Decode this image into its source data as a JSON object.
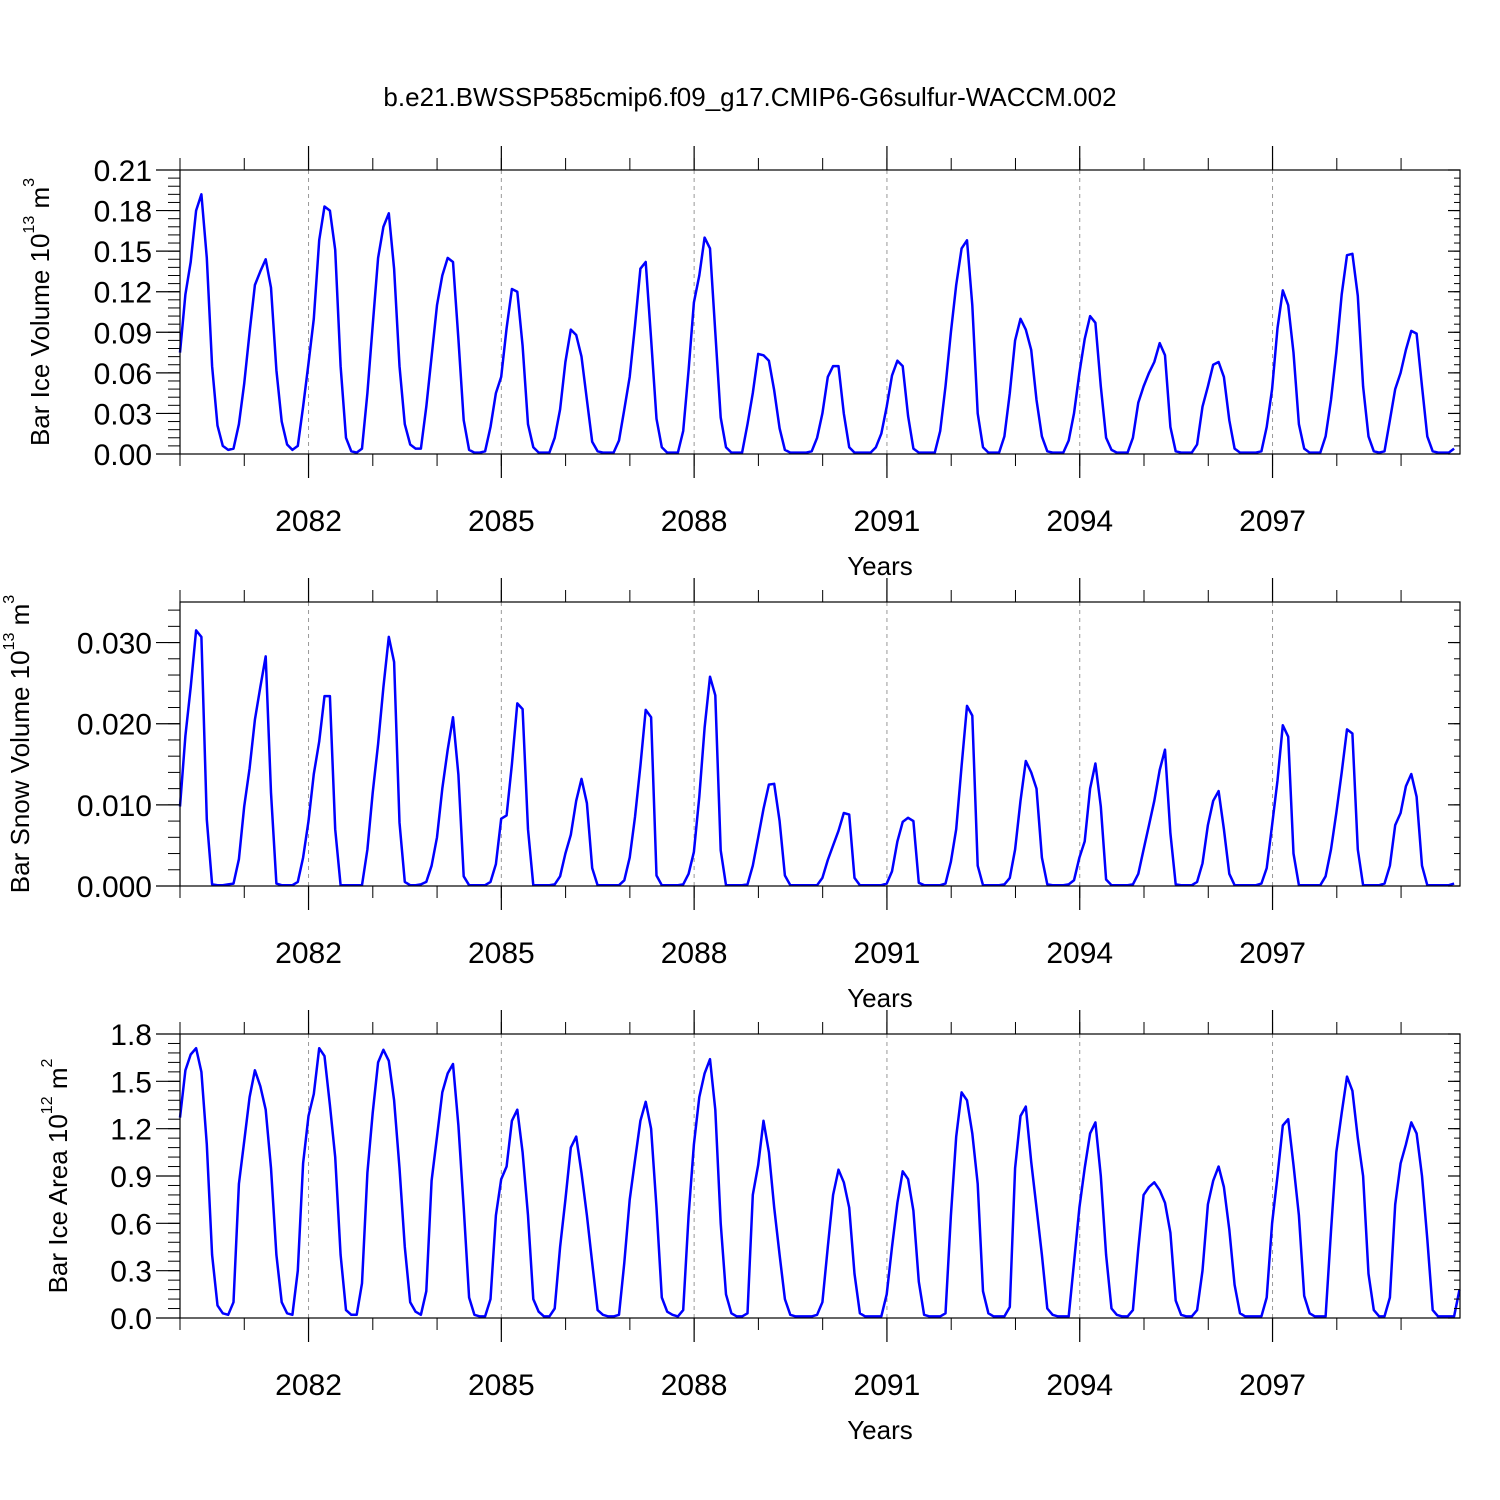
{
  "title": "b.e21.BWSSP585cmip6.f09_g17.CMIP6-G6sulfur-WACCM.002",
  "colors": {
    "line": "#0000ff",
    "axis": "#000000",
    "gridline": "#999999"
  },
  "chart_data": [
    {
      "type": "line",
      "ylabel": {
        "text": "Bar Ice Volume 10",
        "exp": "13",
        "unit": " m",
        "unit_exp": "3"
      },
      "xlabel": "Years",
      "xlim": [
        2080.0,
        2099.917
      ],
      "ylim": [
        0.0,
        0.21
      ],
      "yticks": [
        0.0,
        0.03,
        0.06,
        0.09,
        0.12,
        0.15,
        0.18,
        0.21
      ],
      "yticklabels": [
        "0.00",
        "0.03",
        "0.06",
        "0.09",
        "0.12",
        "0.15",
        "0.18",
        "0.21"
      ],
      "xticks": [
        2082,
        2085,
        2088,
        2091,
        2094,
        2097
      ],
      "xticklabels": [
        "2082",
        "2085",
        "2088",
        "2091",
        "2094",
        "2097"
      ],
      "grid": "vertical-dashed",
      "start": 2080.0,
      "step": 0.0833,
      "series": [
        {
          "values": [
            0.075,
            0.118,
            0.142,
            0.18,
            0.192,
            0.145,
            0.065,
            0.021,
            0.006,
            0.003,
            0.004,
            0.022,
            0.052,
            0.09,
            0.125,
            0.135,
            0.144,
            0.123,
            0.062,
            0.024,
            0.007,
            0.003,
            0.006,
            0.035,
            0.067,
            0.1,
            0.158,
            0.183,
            0.18,
            0.151,
            0.065,
            0.012,
            0.002,
            0.001,
            0.004,
            0.045,
            0.095,
            0.145,
            0.168,
            0.178,
            0.137,
            0.065,
            0.022,
            0.007,
            0.004,
            0.004,
            0.035,
            0.072,
            0.11,
            0.132,
            0.145,
            0.142,
            0.085,
            0.025,
            0.003,
            0.001,
            0.001,
            0.002,
            0.02,
            0.045,
            0.057,
            0.093,
            0.122,
            0.12,
            0.08,
            0.022,
            0.005,
            0.001,
            0.001,
            0.001,
            0.012,
            0.033,
            0.068,
            0.092,
            0.088,
            0.072,
            0.04,
            0.009,
            0.002,
            0.001,
            0.001,
            0.001,
            0.01,
            0.033,
            0.057,
            0.095,
            0.137,
            0.142,
            0.085,
            0.026,
            0.005,
            0.001,
            0.001,
            0.001,
            0.017,
            0.062,
            0.112,
            0.132,
            0.16,
            0.152,
            0.09,
            0.027,
            0.005,
            0.001,
            0.001,
            0.001,
            0.022,
            0.045,
            0.074,
            0.073,
            0.069,
            0.047,
            0.019,
            0.003,
            0.001,
            0.001,
            0.001,
            0.001,
            0.002,
            0.012,
            0.03,
            0.057,
            0.065,
            0.065,
            0.03,
            0.005,
            0.001,
            0.001,
            0.001,
            0.001,
            0.005,
            0.015,
            0.035,
            0.058,
            0.069,
            0.065,
            0.028,
            0.004,
            0.001,
            0.001,
            0.001,
            0.001,
            0.017,
            0.05,
            0.09,
            0.125,
            0.152,
            0.158,
            0.11,
            0.03,
            0.005,
            0.001,
            0.001,
            0.001,
            0.013,
            0.045,
            0.084,
            0.1,
            0.092,
            0.077,
            0.04,
            0.013,
            0.002,
            0.001,
            0.001,
            0.001,
            0.01,
            0.03,
            0.06,
            0.085,
            0.102,
            0.097,
            0.05,
            0.012,
            0.003,
            0.001,
            0.001,
            0.001,
            0.012,
            0.038,
            0.05,
            0.06,
            0.068,
            0.082,
            0.073,
            0.02,
            0.002,
            0.001,
            0.001,
            0.001,
            0.007,
            0.035,
            0.05,
            0.066,
            0.068,
            0.057,
            0.025,
            0.004,
            0.001,
            0.001,
            0.001,
            0.001,
            0.002,
            0.02,
            0.048,
            0.093,
            0.121,
            0.11,
            0.075,
            0.022,
            0.004,
            0.001,
            0.001,
            0.001,
            0.013,
            0.04,
            0.075,
            0.118,
            0.147,
            0.148,
            0.117,
            0.05,
            0.013,
            0.002,
            0.001,
            0.002,
            0.025,
            0.048,
            0.06,
            0.077,
            0.091,
            0.089,
            0.05,
            0.013,
            0.002,
            0.001,
            0.001,
            0.001,
            0.004
          ]
        }
      ]
    },
    {
      "type": "line",
      "ylabel": {
        "text": "Bar Snow Volume 10",
        "exp": "13",
        "unit": " m",
        "unit_exp": "3"
      },
      "xlabel": "Years",
      "xlim": [
        2080.0,
        2099.917
      ],
      "ylim": [
        0.0,
        0.035
      ],
      "yticks": [
        0.0,
        0.01,
        0.02,
        0.03
      ],
      "yticklabels": [
        "0.000",
        "0.010",
        "0.020",
        "0.030"
      ],
      "xticks": [
        2082,
        2085,
        2088,
        2091,
        2094,
        2097
      ],
      "xticklabels": [
        "2082",
        "2085",
        "2088",
        "2091",
        "2094",
        "2097"
      ],
      "grid": "vertical-dashed",
      "start": 2080.0,
      "step": 0.0833,
      "series": [
        {
          "values": [
            0.0098,
            0.0185,
            0.0245,
            0.0315,
            0.0307,
            0.0082,
            0.0002,
            0.0001,
            0.0001,
            0.0002,
            0.0003,
            0.0033,
            0.0098,
            0.0145,
            0.0205,
            0.0245,
            0.0283,
            0.0115,
            0.0003,
            0.0001,
            0.0001,
            0.0001,
            0.0005,
            0.0035,
            0.008,
            0.0138,
            0.0178,
            0.0234,
            0.0234,
            0.007,
            0.0001,
            0.0001,
            0.0001,
            0.0001,
            0.0001,
            0.0045,
            0.0115,
            0.0175,
            0.0245,
            0.0307,
            0.0276,
            0.0078,
            0.0005,
            0.0001,
            0.0001,
            0.0002,
            0.0005,
            0.0025,
            0.006,
            0.012,
            0.0168,
            0.0208,
            0.0137,
            0.0012,
            0.0001,
            0.0001,
            0.0001,
            0.0001,
            0.0005,
            0.0027,
            0.0083,
            0.0087,
            0.015,
            0.0225,
            0.0218,
            0.007,
            0.0001,
            0.0001,
            0.0001,
            0.0001,
            0.0002,
            0.0012,
            0.004,
            0.0063,
            0.0105,
            0.0132,
            0.0102,
            0.0022,
            0.0001,
            0.0001,
            0.0001,
            0.0001,
            0.0001,
            0.0007,
            0.0035,
            0.0085,
            0.0148,
            0.0217,
            0.0208,
            0.0013,
            0.0001,
            0.0001,
            0.0001,
            0.0001,
            0.0002,
            0.0015,
            0.0042,
            0.011,
            0.0195,
            0.0258,
            0.0235,
            0.0044,
            0.0001,
            0.0001,
            0.0001,
            0.0001,
            0.0002,
            0.0025,
            0.006,
            0.0095,
            0.0125,
            0.0126,
            0.008,
            0.0013,
            0.0001,
            0.0001,
            0.0001,
            0.0001,
            0.0001,
            0.0001,
            0.001,
            0.0032,
            0.005,
            0.0068,
            0.009,
            0.0088,
            0.001,
            0.0001,
            0.0001,
            0.0001,
            0.0001,
            0.0001,
            0.0003,
            0.0018,
            0.0055,
            0.0079,
            0.0084,
            0.008,
            0.0004,
            0.0001,
            0.0001,
            0.0001,
            0.0001,
            0.0003,
            0.003,
            0.007,
            0.0148,
            0.0222,
            0.021,
            0.0025,
            0.0001,
            0.0001,
            0.0001,
            0.0001,
            0.0002,
            0.001,
            0.0045,
            0.0105,
            0.0154,
            0.014,
            0.012,
            0.0035,
            0.0002,
            0.0001,
            0.0001,
            0.0001,
            0.0002,
            0.0007,
            0.0035,
            0.0055,
            0.012,
            0.0151,
            0.0098,
            0.0008,
            0.0001,
            0.0001,
            0.0001,
            0.0001,
            0.0002,
            0.0015,
            0.0045,
            0.0075,
            0.0105,
            0.0143,
            0.0168,
            0.0065,
            0.0002,
            0.0001,
            0.0001,
            0.0001,
            0.0005,
            0.0028,
            0.0075,
            0.0105,
            0.0117,
            0.007,
            0.0015,
            0.0001,
            0.0001,
            0.0001,
            0.0001,
            0.0001,
            0.0003,
            0.0022,
            0.0075,
            0.013,
            0.0198,
            0.0184,
            0.004,
            0.0001,
            0.0001,
            0.0001,
            0.0001,
            0.0001,
            0.0012,
            0.0045,
            0.009,
            0.014,
            0.0193,
            0.0188,
            0.0045,
            0.0001,
            0.0001,
            0.0001,
            0.0001,
            0.0003,
            0.0025,
            0.0075,
            0.009,
            0.0123,
            0.0138,
            0.011,
            0.0025,
            0.0001,
            0.0001,
            0.0001,
            0.0001,
            0.0001,
            0.0003
          ]
        }
      ]
    },
    {
      "type": "line",
      "ylabel": {
        "text": "Bar Ice Area 10",
        "exp": "12",
        "unit": " m",
        "unit_exp": "2"
      },
      "xlabel": "Years",
      "xlim": [
        2080.0,
        2099.917
      ],
      "ylim": [
        0.0,
        1.8
      ],
      "yticks": [
        0.0,
        0.3,
        0.6,
        0.9,
        1.2,
        1.5,
        1.8
      ],
      "yticklabels": [
        "0.0",
        "0.3",
        "0.6",
        "0.9",
        "1.2",
        "1.5",
        "1.8"
      ],
      "xticks": [
        2082,
        2085,
        2088,
        2091,
        2094,
        2097
      ],
      "xticklabels": [
        "2082",
        "2085",
        "2088",
        "2091",
        "2094",
        "2097"
      ],
      "grid": "vertical-dashed",
      "start": 2080.0,
      "step": 0.0833,
      "series": [
        {
          "values": [
            1.27,
            1.57,
            1.67,
            1.71,
            1.56,
            1.1,
            0.4,
            0.08,
            0.03,
            0.02,
            0.1,
            0.85,
            1.12,
            1.4,
            1.57,
            1.47,
            1.32,
            0.95,
            0.4,
            0.1,
            0.03,
            0.02,
            0.3,
            0.98,
            1.28,
            1.42,
            1.71,
            1.66,
            1.35,
            1.02,
            0.4,
            0.05,
            0.02,
            0.02,
            0.22,
            0.92,
            1.3,
            1.62,
            1.7,
            1.63,
            1.38,
            0.95,
            0.45,
            0.1,
            0.04,
            0.02,
            0.17,
            0.87,
            1.15,
            1.43,
            1.55,
            1.61,
            1.22,
            0.7,
            0.13,
            0.02,
            0.01,
            0.01,
            0.12,
            0.65,
            0.88,
            0.96,
            1.25,
            1.32,
            1.05,
            0.65,
            0.12,
            0.04,
            0.01,
            0.01,
            0.06,
            0.45,
            0.75,
            1.08,
            1.15,
            0.92,
            0.65,
            0.35,
            0.05,
            0.02,
            0.01,
            0.01,
            0.02,
            0.35,
            0.75,
            1.0,
            1.25,
            1.37,
            1.2,
            0.7,
            0.13,
            0.04,
            0.02,
            0.01,
            0.05,
            0.65,
            1.1,
            1.4,
            1.55,
            1.64,
            1.32,
            0.6,
            0.15,
            0.03,
            0.01,
            0.01,
            0.03,
            0.78,
            0.97,
            1.25,
            1.05,
            0.7,
            0.4,
            0.12,
            0.02,
            0.01,
            0.01,
            0.01,
            0.01,
            0.02,
            0.1,
            0.45,
            0.78,
            0.94,
            0.86,
            0.7,
            0.28,
            0.03,
            0.01,
            0.01,
            0.01,
            0.01,
            0.15,
            0.45,
            0.73,
            0.93,
            0.88,
            0.68,
            0.23,
            0.02,
            0.01,
            0.01,
            0.01,
            0.03,
            0.65,
            1.15,
            1.43,
            1.38,
            1.17,
            0.85,
            0.17,
            0.03,
            0.01,
            0.01,
            0.01,
            0.07,
            0.95,
            1.28,
            1.34,
            0.99,
            0.7,
            0.4,
            0.06,
            0.02,
            0.01,
            0.01,
            0.01,
            0.35,
            0.7,
            0.95,
            1.17,
            1.24,
            0.9,
            0.4,
            0.06,
            0.02,
            0.01,
            0.01,
            0.05,
            0.44,
            0.78,
            0.83,
            0.86,
            0.81,
            0.73,
            0.54,
            0.11,
            0.02,
            0.01,
            0.01,
            0.05,
            0.3,
            0.72,
            0.87,
            0.96,
            0.83,
            0.56,
            0.21,
            0.03,
            0.01,
            0.01,
            0.01,
            0.01,
            0.13,
            0.6,
            0.9,
            1.22,
            1.26,
            0.97,
            0.65,
            0.14,
            0.03,
            0.01,
            0.01,
            0.01,
            0.55,
            1.05,
            1.3,
            1.53,
            1.44,
            1.14,
            0.9,
            0.28,
            0.05,
            0.01,
            0.01,
            0.13,
            0.72,
            0.98,
            1.1,
            1.24,
            1.17,
            0.9,
            0.5,
            0.05,
            0.01,
            0.01,
            0.01,
            0.01,
            0.18
          ]
        }
      ]
    }
  ]
}
